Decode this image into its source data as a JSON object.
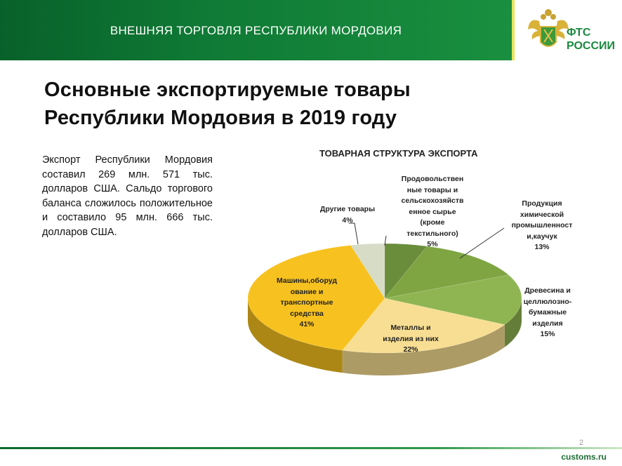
{
  "header": {
    "title": "ВНЕШНЯЯ ТОРГОВЛЯ РЕСПУБЛИКИ МОРДОВИЯ",
    "logo_text": [
      "ФТС",
      "РОССИИ"
    ]
  },
  "page_title": [
    "Основные  экспортируемые  товары",
    "Республики  Мордовия в 2019 году"
  ],
  "description": "Экспорт Республики Мордовия составил 269 млн. 571 тыс. долларов США. Сальдо торгового баланса сложилось положительное и составило 95 млн. 666 тыс. долларов США.",
  "footer": {
    "site": "customs.ru",
    "page": "2"
  },
  "chart_data": {
    "type": "pie",
    "title": "ТОВАРНАЯ СТРУКТУРА ЭКСПОРТА",
    "categories": [
      "Продовольственные товары и сельскохозяйственное сырье (кроме текстильного)",
      "Продукция химической промышленности,каучук",
      "Древесина и целлюлозно-бумажные изделия",
      "Металлы и изделия из них",
      "Машины,оборудование и транспортные средства",
      "Другие товары"
    ],
    "label_lines": [
      [
        "Продовольствен",
        "ные товары  и",
        "сельскохозяйств",
        "енное сырье",
        "(кроме",
        "текстильного)"
      ],
      [
        "Продукция",
        "химической",
        "промышленност",
        "и,каучук"
      ],
      [
        "Древесина и",
        "целлюлозно-",
        "бумажные",
        "изделия"
      ],
      [
        "Металлы и",
        "изделия из них"
      ],
      [
        "Машины,оборуд",
        "ование и",
        "транспортные",
        "средства"
      ],
      [
        "Другие товары"
      ]
    ],
    "values": [
      5,
      13,
      15,
      22,
      41,
      4
    ],
    "value_labels": [
      "5%",
      "13%",
      "15%",
      "22%",
      "41%",
      "4%"
    ],
    "colors": [
      "#6a8d3b",
      "#7ea542",
      "#8fb552",
      "#f8de92",
      "#f7c21f",
      "#d6dcc6"
    ],
    "style": "3d"
  }
}
